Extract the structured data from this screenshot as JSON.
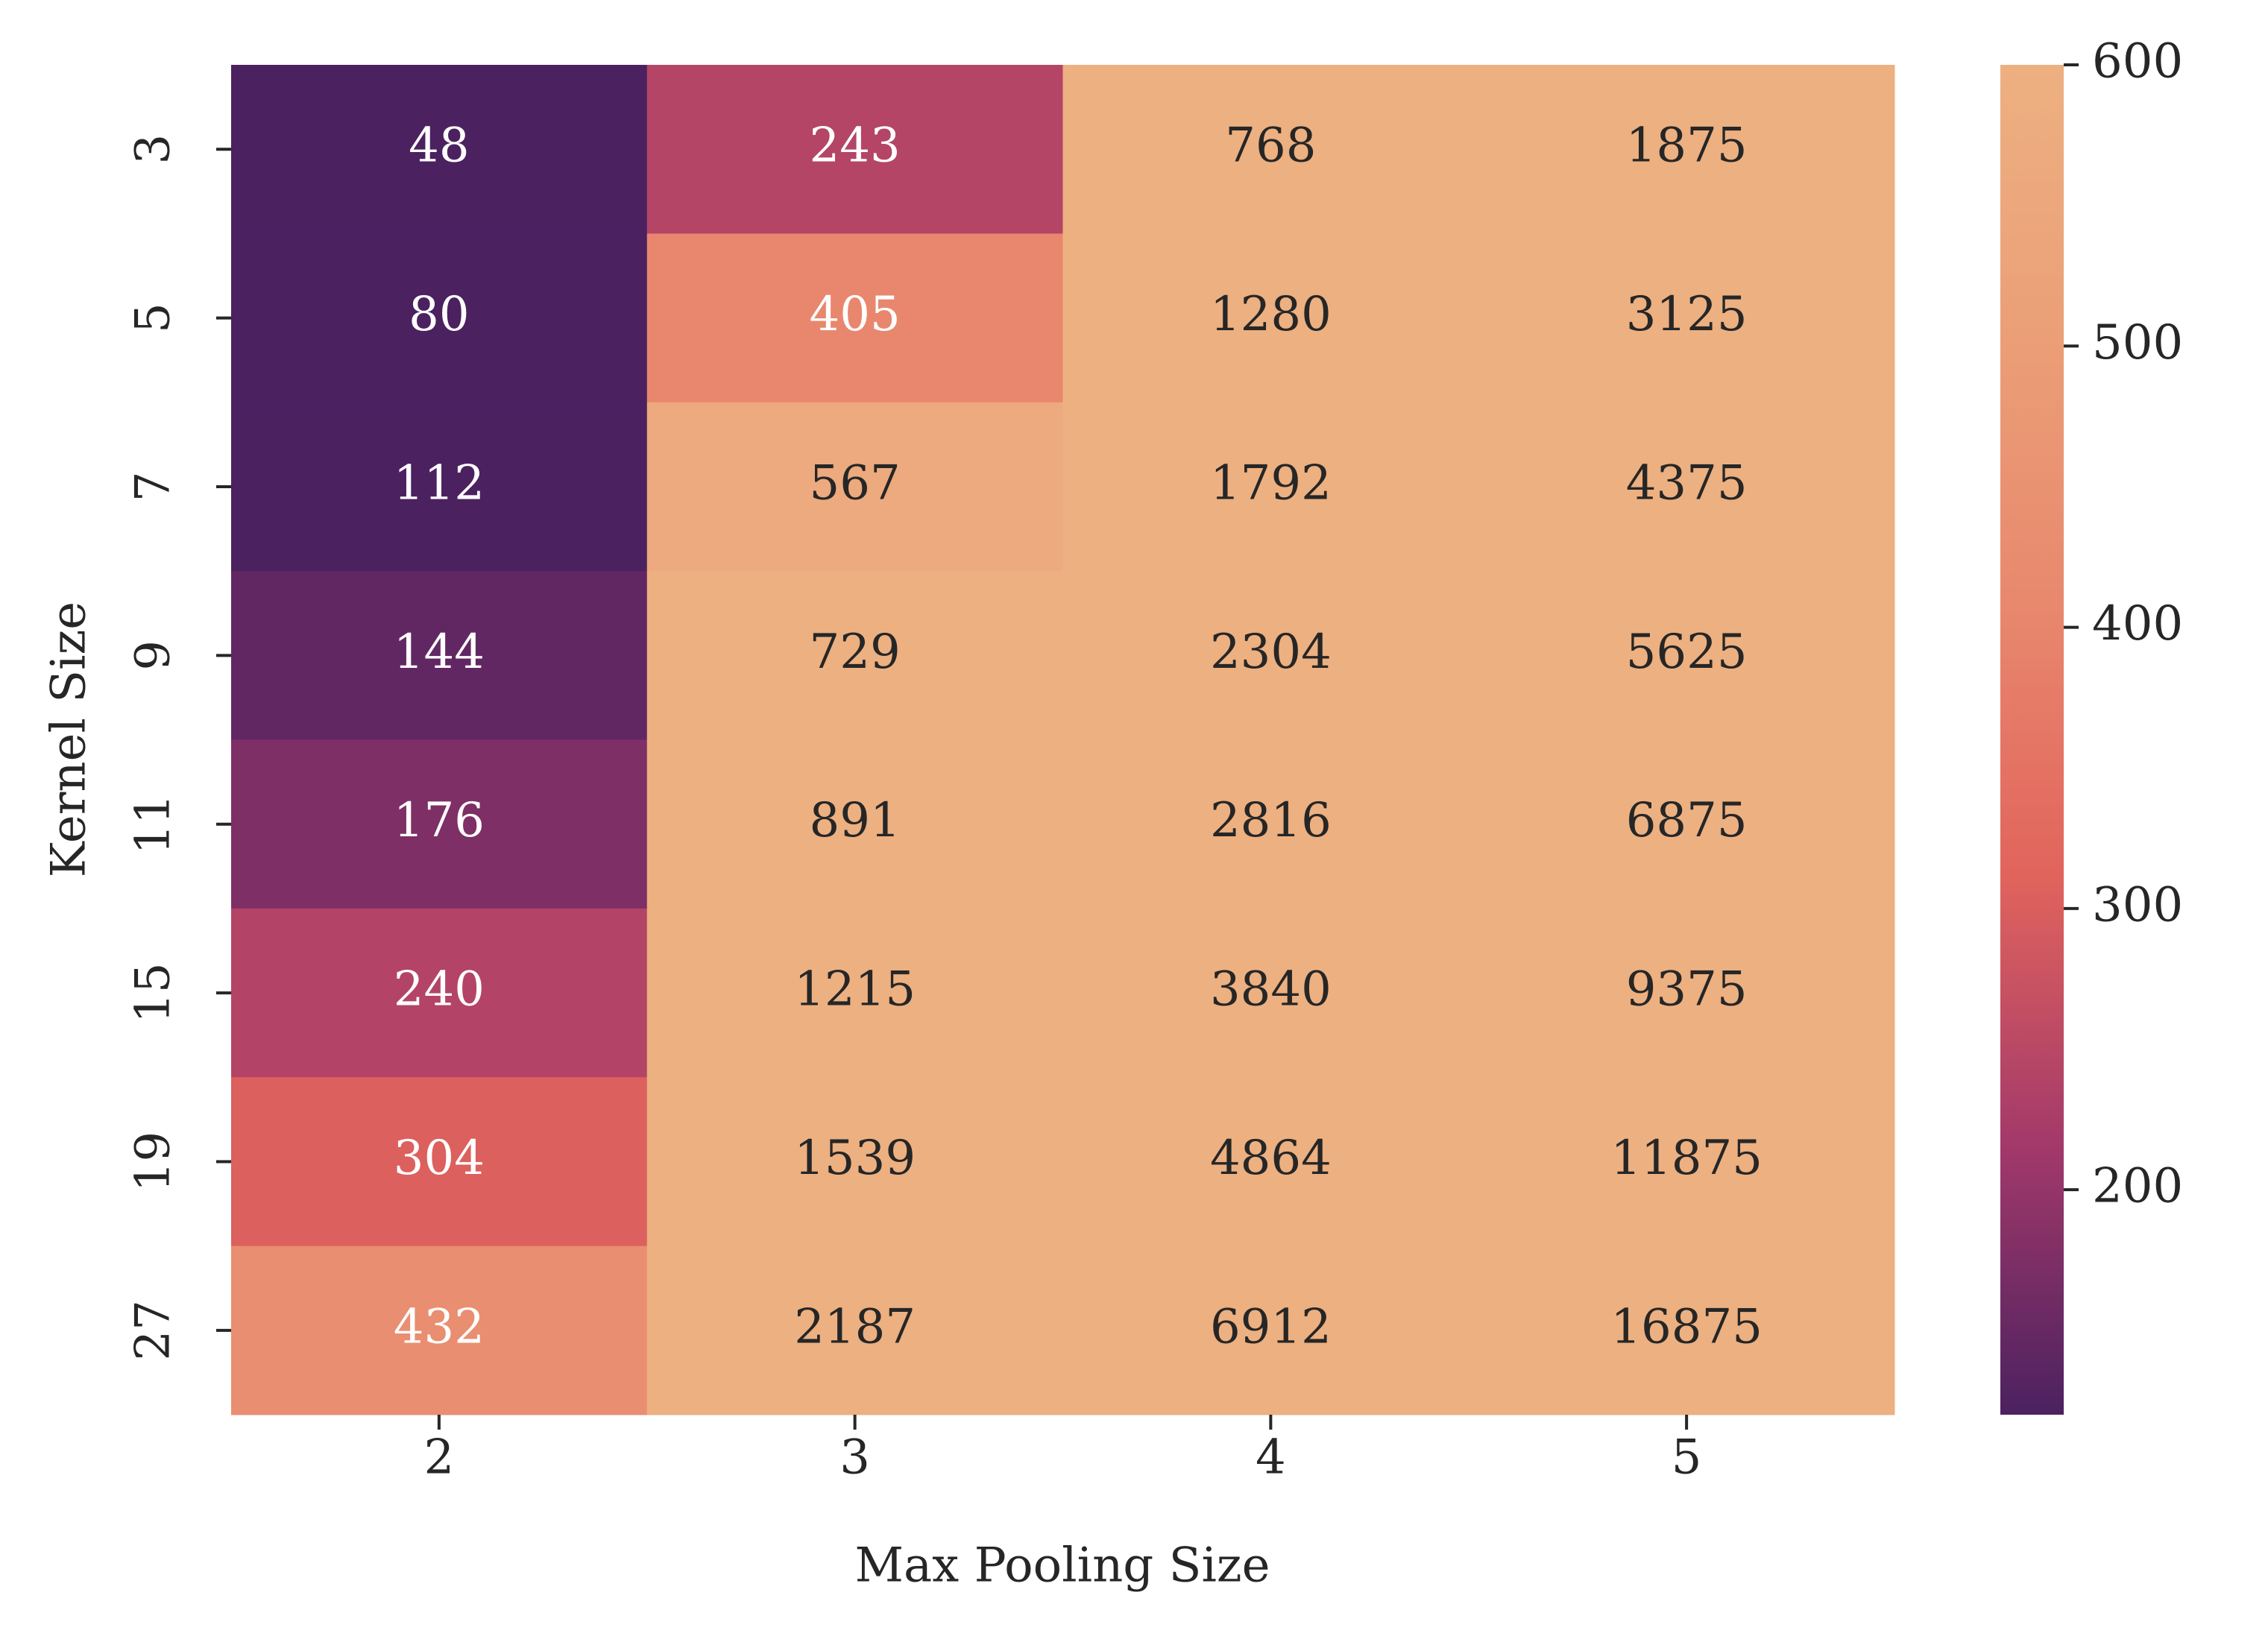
{
  "chart_data": {
    "type": "heatmap",
    "xlabel": "Max Pooling Size",
    "ylabel": "Kernel Size",
    "categories": [
      "2",
      "3",
      "4",
      "5"
    ],
    "y_categories": [
      "3",
      "5",
      "7",
      "9",
      "11",
      "15",
      "19",
      "27"
    ],
    "z": [
      [
        48,
        243,
        768,
        1875
      ],
      [
        80,
        405,
        1280,
        3125
      ],
      [
        112,
        567,
        1792,
        4375
      ],
      [
        144,
        729,
        2304,
        5625
      ],
      [
        176,
        891,
        2816,
        6875
      ],
      [
        240,
        1215,
        3840,
        9375
      ],
      [
        304,
        1539,
        4864,
        11875
      ],
      [
        432,
        2187,
        6912,
        16875
      ]
    ],
    "zlim": [
      120,
      600
    ],
    "zticks": [
      200,
      300,
      400,
      500,
      600
    ],
    "colormap": [
      "#4b2160",
      "#a3396a",
      "#e1645c",
      "#e8886e",
      "#eb9f77",
      "#edb081"
    ]
  }
}
